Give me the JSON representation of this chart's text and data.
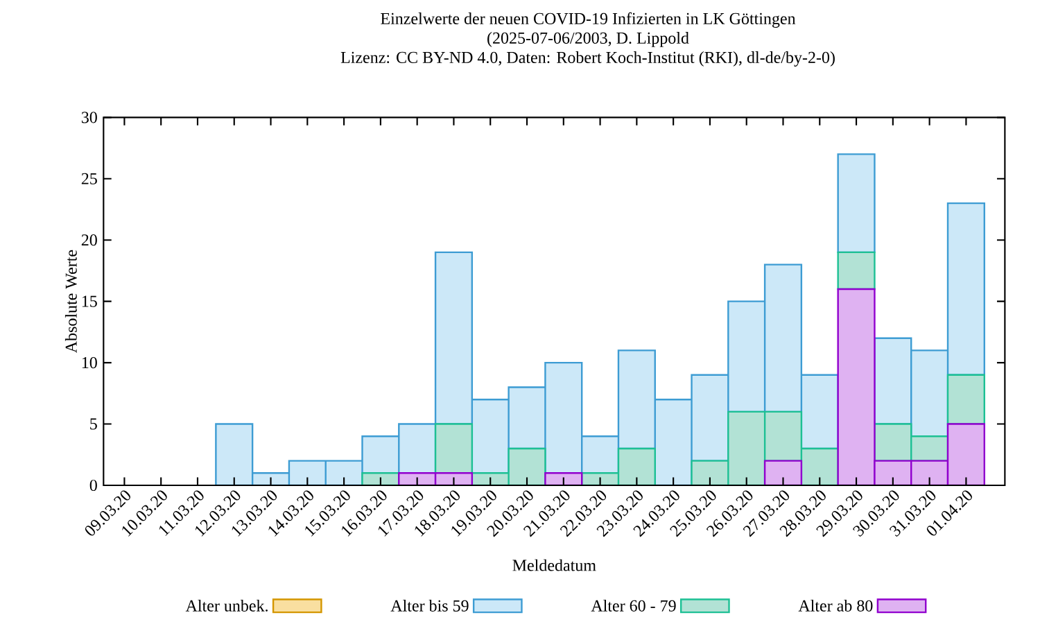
{
  "chart_data": {
    "type": "bar",
    "stacked": true,
    "title": "Einzelwerte der neuen COVID-19 Infizierten in LK Göttingen",
    "subtitle": "(2025-07-06/2003, D. Lippold",
    "annotations": [
      "Lizenz: CC BY-ND 4.0, Daten: Robert Koch-Institut (RKI), dl-de/by-2-0)"
    ],
    "xlabel": "Meldedatum",
    "ylabel": "Absolute Werte",
    "categories": [
      "09.03.20",
      "10.03.20",
      "11.03.20",
      "12.03.20",
      "13.03.20",
      "14.03.20",
      "15.03.20",
      "16.03.20",
      "17.03.20",
      "18.03.20",
      "19.03.20",
      "20.03.20",
      "21.03.20",
      "22.03.20",
      "23.03.20",
      "24.03.20",
      "25.03.20",
      "26.03.20",
      "27.03.20",
      "28.03.20",
      "29.03.20",
      "30.03.20",
      "31.03.20",
      "01.04.20"
    ],
    "series": [
      {
        "name": "Alter ab 80",
        "color": "#dfb2f2",
        "values": [
          0,
          0,
          0,
          0,
          0,
          0,
          0,
          0,
          1,
          1,
          0,
          0,
          1,
          0,
          0,
          0,
          0,
          0,
          2,
          0,
          16,
          2,
          2,
          5
        ]
      },
      {
        "name": "Alter 60 - 79",
        "color": "#b2e2d5",
        "values": [
          0,
          0,
          0,
          0,
          0,
          0,
          0,
          1,
          0,
          4,
          1,
          3,
          0,
          1,
          3,
          0,
          2,
          6,
          4,
          3,
          3,
          3,
          2,
          4
        ]
      },
      {
        "name": "Alter bis 59",
        "color": "#cce8f8",
        "values": [
          0,
          0,
          0,
          5,
          1,
          2,
          2,
          3,
          4,
          14,
          6,
          5,
          9,
          3,
          8,
          7,
          7,
          9,
          12,
          6,
          8,
          7,
          7,
          14
        ]
      },
      {
        "name": "Alter unbek.",
        "color": "#f9dfa0",
        "values": [
          0,
          0,
          0,
          0,
          0,
          0,
          0,
          0,
          0,
          0,
          0,
          0,
          0,
          0,
          0,
          0,
          0,
          0,
          0,
          0,
          0,
          0,
          0,
          0
        ]
      }
    ],
    "ylim": [
      0,
      30
    ],
    "yticks": [
      0,
      5,
      10,
      15,
      20,
      25,
      30
    ],
    "grid": false,
    "legend": "bottom"
  }
}
